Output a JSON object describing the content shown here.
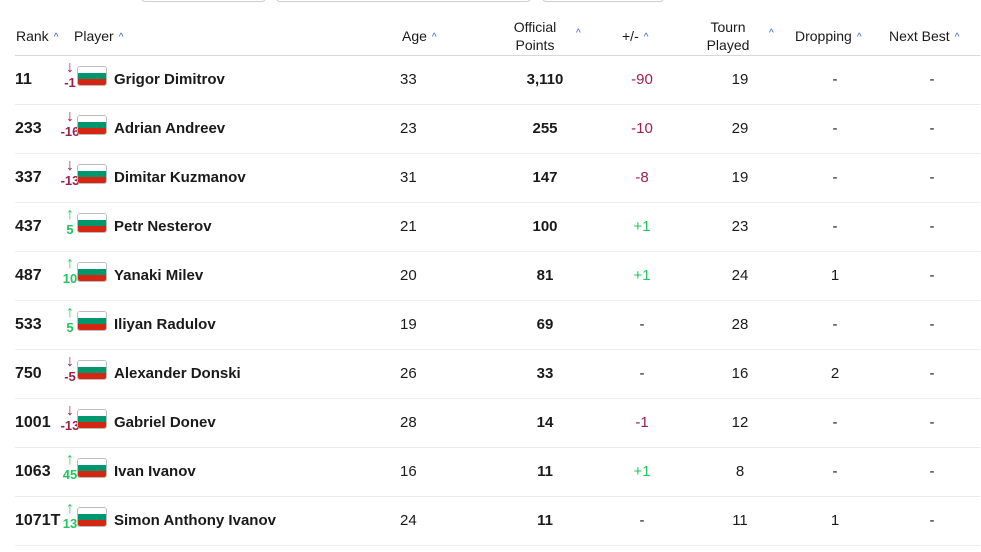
{
  "header": {
    "rank": "Rank",
    "player": "Player",
    "age": "Age",
    "points_line1": "Official",
    "points_line2": "Points",
    "delta": "+/-",
    "played_line1": "Tourn",
    "played_line2": "Played",
    "dropping": "Dropping",
    "next_best": "Next Best",
    "sort_icon": "caret-up-icon"
  },
  "colors": {
    "accent": "#2f5bd7",
    "negative": "#9d1f4a",
    "positive": "#22c55e",
    "flag_white": "#ffffff",
    "flag_green": "#00966e",
    "flag_red": "#d62612"
  },
  "rows": [
    {
      "rank": "11",
      "move_dir": "down",
      "move": "-1",
      "name": "Grigor Dimitrov",
      "age": "33",
      "points": "3,110",
      "delta": "-90",
      "delta_sign": "neg",
      "played": "19",
      "dropping": "-",
      "next_best": "-"
    },
    {
      "rank": "233",
      "move_dir": "down",
      "move": "-16",
      "name": "Adrian Andreev",
      "age": "23",
      "points": "255",
      "delta": "-10",
      "delta_sign": "neg",
      "played": "29",
      "dropping": "-",
      "next_best": "-"
    },
    {
      "rank": "337",
      "move_dir": "down",
      "move": "-13",
      "name": "Dimitar Kuzmanov",
      "age": "31",
      "points": "147",
      "delta": "-8",
      "delta_sign": "neg",
      "played": "19",
      "dropping": "-",
      "next_best": "-"
    },
    {
      "rank": "437",
      "move_dir": "up",
      "move": "5",
      "name": "Petr Nesterov",
      "age": "21",
      "points": "100",
      "delta": "+1",
      "delta_sign": "pos",
      "played": "23",
      "dropping": "-",
      "next_best": "-"
    },
    {
      "rank": "487",
      "move_dir": "up",
      "move": "10",
      "name": "Yanaki Milev",
      "age": "20",
      "points": "81",
      "delta": "+1",
      "delta_sign": "pos",
      "played": "24",
      "dropping": "1",
      "next_best": "-"
    },
    {
      "rank": "533",
      "move_dir": "up",
      "move": "5",
      "name": "Iliyan Radulov",
      "age": "19",
      "points": "69",
      "delta": "-",
      "delta_sign": "none",
      "played": "28",
      "dropping": "-",
      "next_best": "-"
    },
    {
      "rank": "750",
      "move_dir": "down",
      "move": "-5",
      "name": "Alexander Donski",
      "age": "26",
      "points": "33",
      "delta": "-",
      "delta_sign": "none",
      "played": "16",
      "dropping": "2",
      "next_best": "-"
    },
    {
      "rank": "1001",
      "move_dir": "down",
      "move": "-13",
      "name": "Gabriel Donev",
      "age": "28",
      "points": "14",
      "delta": "-1",
      "delta_sign": "neg",
      "played": "12",
      "dropping": "-",
      "next_best": "-"
    },
    {
      "rank": "1063",
      "move_dir": "up",
      "move": "45",
      "name": "Ivan Ivanov",
      "age": "16",
      "points": "11",
      "delta": "+1",
      "delta_sign": "pos",
      "played": "8",
      "dropping": "-",
      "next_best": "-"
    },
    {
      "rank": "1071T",
      "move_dir": "up",
      "move": "13",
      "name": "Simon Anthony Ivanov",
      "age": "24",
      "points": "11",
      "delta": "-",
      "delta_sign": "none",
      "played": "11",
      "dropping": "1",
      "next_best": "-"
    }
  ]
}
